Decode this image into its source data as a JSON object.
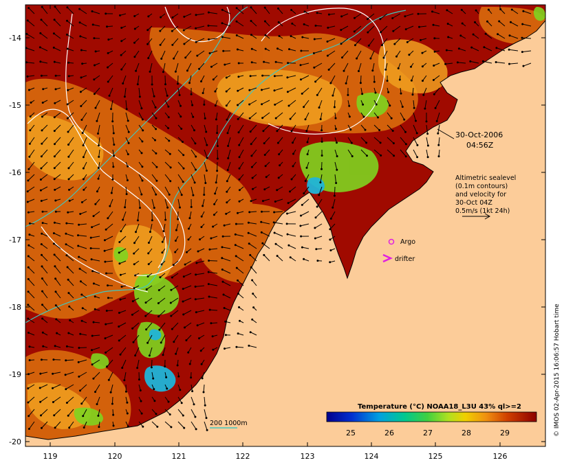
{
  "map": {
    "x_ticks": [
      "119",
      "120",
      "121",
      "122",
      "123",
      "124",
      "125",
      "126"
    ],
    "y_ticks": [
      "-14",
      "-15",
      "-16",
      "-17",
      "-18",
      "-19",
      "-20"
    ],
    "date_label": "30-Oct-2006",
    "time_label": "04:56Z",
    "altimetry_legend": [
      "Altimetric sealevel",
      "(0.1m contours)",
      "and velocity for",
      "30-Oct 04Z",
      "0.5m/s (1kt 24h)"
    ],
    "argo_label": "Argo",
    "drifter_label": "drifter",
    "isobath_label": "200  1000m",
    "colorbar_title": "Temperature (°C) NOAA18_L3U 43% ql>=2",
    "colorbar_ticks": [
      "25",
      "26",
      "27",
      "28",
      "29"
    ],
    "colorbar_range": [
      24.5,
      29.9
    ],
    "credit": "© IMOS 02-Apr-2015 16:06:57 Hobart time",
    "colors": {
      "land": "#fccc99",
      "sst_hot": "#a00a00",
      "sst_warm": "#d86a0c",
      "sst_mid": "#f0a020",
      "sst_cool": "#7fd420",
      "sst_cold": "#20b4d8",
      "contour": "#ffffff",
      "isobath": "#40c8c0",
      "argo": "#e020e0",
      "drifter": "#e020e0"
    }
  }
}
